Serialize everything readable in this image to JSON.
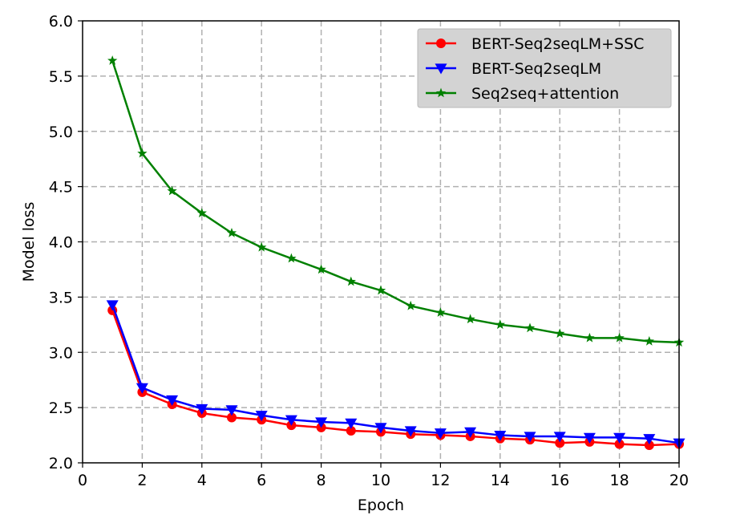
{
  "chart_data": {
    "type": "line",
    "title": "",
    "xlabel": "Epoch",
    "ylabel": "Model loss",
    "xlim": [
      0,
      20
    ],
    "ylim": [
      2.0,
      6.0
    ],
    "xticks": [
      0,
      2,
      4,
      6,
      8,
      10,
      12,
      14,
      16,
      18,
      20
    ],
    "xtick_labels": [
      "0",
      "2",
      "4",
      "6",
      "8",
      "10",
      "12",
      "14",
      "16",
      "18",
      "20"
    ],
    "yticks": [
      2.0,
      2.5,
      3.0,
      3.5,
      4.0,
      4.5,
      5.0,
      5.5,
      6.0
    ],
    "ytick_labels": [
      "2.0",
      "2.5",
      "3.0",
      "3.5",
      "4.0",
      "4.5",
      "5.0",
      "5.5",
      "6.0"
    ],
    "grid": true,
    "legend_position": "top-right",
    "x": [
      1,
      2,
      3,
      4,
      5,
      6,
      7,
      8,
      9,
      10,
      11,
      12,
      13,
      14,
      15,
      16,
      17,
      18,
      19,
      20
    ],
    "series": [
      {
        "name": "BERT-Seq2seqLM+SSC",
        "color": "#ff0000",
        "marker": "circle",
        "values": [
          3.38,
          2.64,
          2.53,
          2.45,
          2.41,
          2.39,
          2.34,
          2.32,
          2.29,
          2.28,
          2.26,
          2.25,
          2.24,
          2.22,
          2.21,
          2.18,
          2.19,
          2.17,
          2.16,
          2.17
        ]
      },
      {
        "name": "BERT-Seq2seqLM",
        "color": "#0000ff",
        "marker": "triangle-down",
        "values": [
          3.43,
          2.68,
          2.57,
          2.49,
          2.48,
          2.43,
          2.39,
          2.37,
          2.36,
          2.32,
          2.29,
          2.27,
          2.28,
          2.25,
          2.24,
          2.24,
          2.23,
          2.23,
          2.22,
          2.18
        ]
      },
      {
        "name": "Seq2seq+attention",
        "color": "#008000",
        "marker": "star",
        "values": [
          5.64,
          4.8,
          4.46,
          4.26,
          4.08,
          3.95,
          3.85,
          3.75,
          3.64,
          3.56,
          3.42,
          3.36,
          3.3,
          3.25,
          3.22,
          3.17,
          3.13,
          3.13,
          3.1,
          3.09
        ]
      }
    ]
  }
}
